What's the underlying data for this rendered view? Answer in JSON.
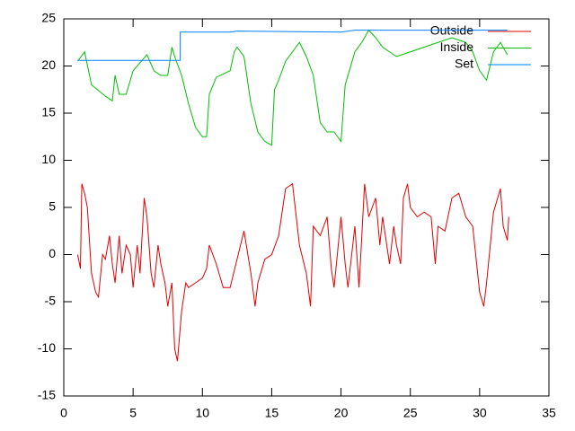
{
  "chart_data": {
    "type": "line",
    "xlim": [
      0,
      35
    ],
    "xticks": [
      0,
      5,
      10,
      15,
      20,
      25,
      30,
      35
    ],
    "ylim": [
      -15,
      25
    ],
    "yticks": [
      -15,
      -10,
      -5,
      0,
      5,
      10,
      15,
      20,
      25
    ],
    "legend": "top-right",
    "series": [
      {
        "name": "Outside",
        "color": "#e00000",
        "x": [
          1,
          1.2,
          1.3,
          1.5,
          1.7,
          2,
          2.3,
          2.5,
          2.8,
          3,
          3.3,
          3.5,
          3.7,
          4,
          4.2,
          4.5,
          4.8,
          5,
          5.3,
          5.5,
          5.8,
          6,
          6.3,
          6.5,
          6.8,
          7,
          7.3,
          7.5,
          7.8,
          8,
          8.2,
          8.5,
          8.8,
          9,
          9.5,
          10,
          10.3,
          10.5,
          11,
          11.5,
          12,
          12.5,
          13,
          13.5,
          13.8,
          14,
          14.5,
          15,
          15.5,
          16,
          16.5,
          17,
          17.5,
          17.8,
          18,
          18.5,
          19,
          19.3,
          19.5,
          20,
          20.3,
          20.5,
          21,
          21.3,
          21.7,
          22,
          22.5,
          22.8,
          23,
          23.5,
          23.8,
          24,
          24.3,
          24.5,
          24.8,
          25,
          25.5,
          26,
          26.5,
          26.8,
          27,
          27.5,
          28,
          28.5,
          29,
          29.5,
          30,
          30.3,
          30.5,
          31,
          31.5,
          31.7,
          32,
          32.1
        ],
        "values": [
          0,
          -1.5,
          7.5,
          6.5,
          5,
          -2,
          -4,
          -4.5,
          0,
          -0.5,
          2,
          -1,
          -3,
          2,
          -2,
          1,
          0,
          -3.5,
          1,
          -2,
          6,
          4,
          -2,
          -3.5,
          1,
          -1,
          -3,
          -5.5,
          -3,
          -10,
          -11.3,
          -6,
          -3,
          -3.5,
          -3,
          -2.5,
          -1.5,
          1,
          -1,
          -3.5,
          -3.5,
          -0.5,
          2.5,
          -2,
          -5.5,
          -3,
          -0.5,
          0,
          2,
          7,
          7.5,
          1,
          -2,
          -5.5,
          3,
          2,
          4,
          -1.5,
          -3.5,
          4,
          -1,
          -3.5,
          3,
          -3.5,
          7.5,
          4,
          6,
          1,
          4,
          -1,
          3,
          1,
          -1,
          6,
          7.5,
          5,
          4,
          4.5,
          4,
          -1,
          3,
          2.5,
          6,
          6.5,
          4,
          3,
          -4,
          -5.5,
          -3,
          4.5,
          7,
          3,
          1.5,
          4
        ]
      },
      {
        "name": "Inside",
        "color": "#00c000",
        "x": [
          1,
          1.5,
          2,
          3,
          3.5,
          3.7,
          4,
          4.5,
          5,
          6,
          6.5,
          7,
          7.5,
          7.8,
          8,
          8.5,
          9,
          9.5,
          10,
          10.3,
          10.5,
          11,
          12,
          12.3,
          12.5,
          13,
          13.5,
          14,
          14.5,
          15,
          15.2,
          15.5,
          16,
          17,
          17.5,
          18,
          18.5,
          19,
          19.5,
          20,
          20.3,
          21,
          21.5,
          22,
          22.5,
          23,
          24,
          25,
          26,
          27,
          28,
          29,
          29.5,
          30,
          30.5,
          31,
          31.5,
          32
        ],
        "values": [
          20.5,
          21.5,
          18,
          16.8,
          16.3,
          19,
          17,
          17,
          19.5,
          21.2,
          19.5,
          19,
          19,
          22,
          21,
          19,
          16,
          13.5,
          12.5,
          12.5,
          17,
          18.8,
          19.5,
          21.5,
          22,
          21,
          16,
          13,
          12,
          11.6,
          17.5,
          18.5,
          20.5,
          22.5,
          21,
          19,
          14,
          13,
          13,
          12,
          18,
          21.5,
          22.5,
          23.8,
          23,
          22,
          21,
          21.5,
          22,
          22.5,
          23,
          22.5,
          21.5,
          19.5,
          18.5,
          21.5,
          22.5,
          21.2
        ]
      },
      {
        "name": "Set",
        "color": "#0080ff",
        "x": [
          1,
          8.4,
          8.4,
          12,
          12.5,
          20,
          21,
          26,
          30,
          32
        ],
        "values": [
          20.6,
          20.6,
          23.6,
          23.6,
          23.7,
          23.6,
          23.8,
          23.8,
          23.8,
          23.8
        ]
      }
    ]
  }
}
